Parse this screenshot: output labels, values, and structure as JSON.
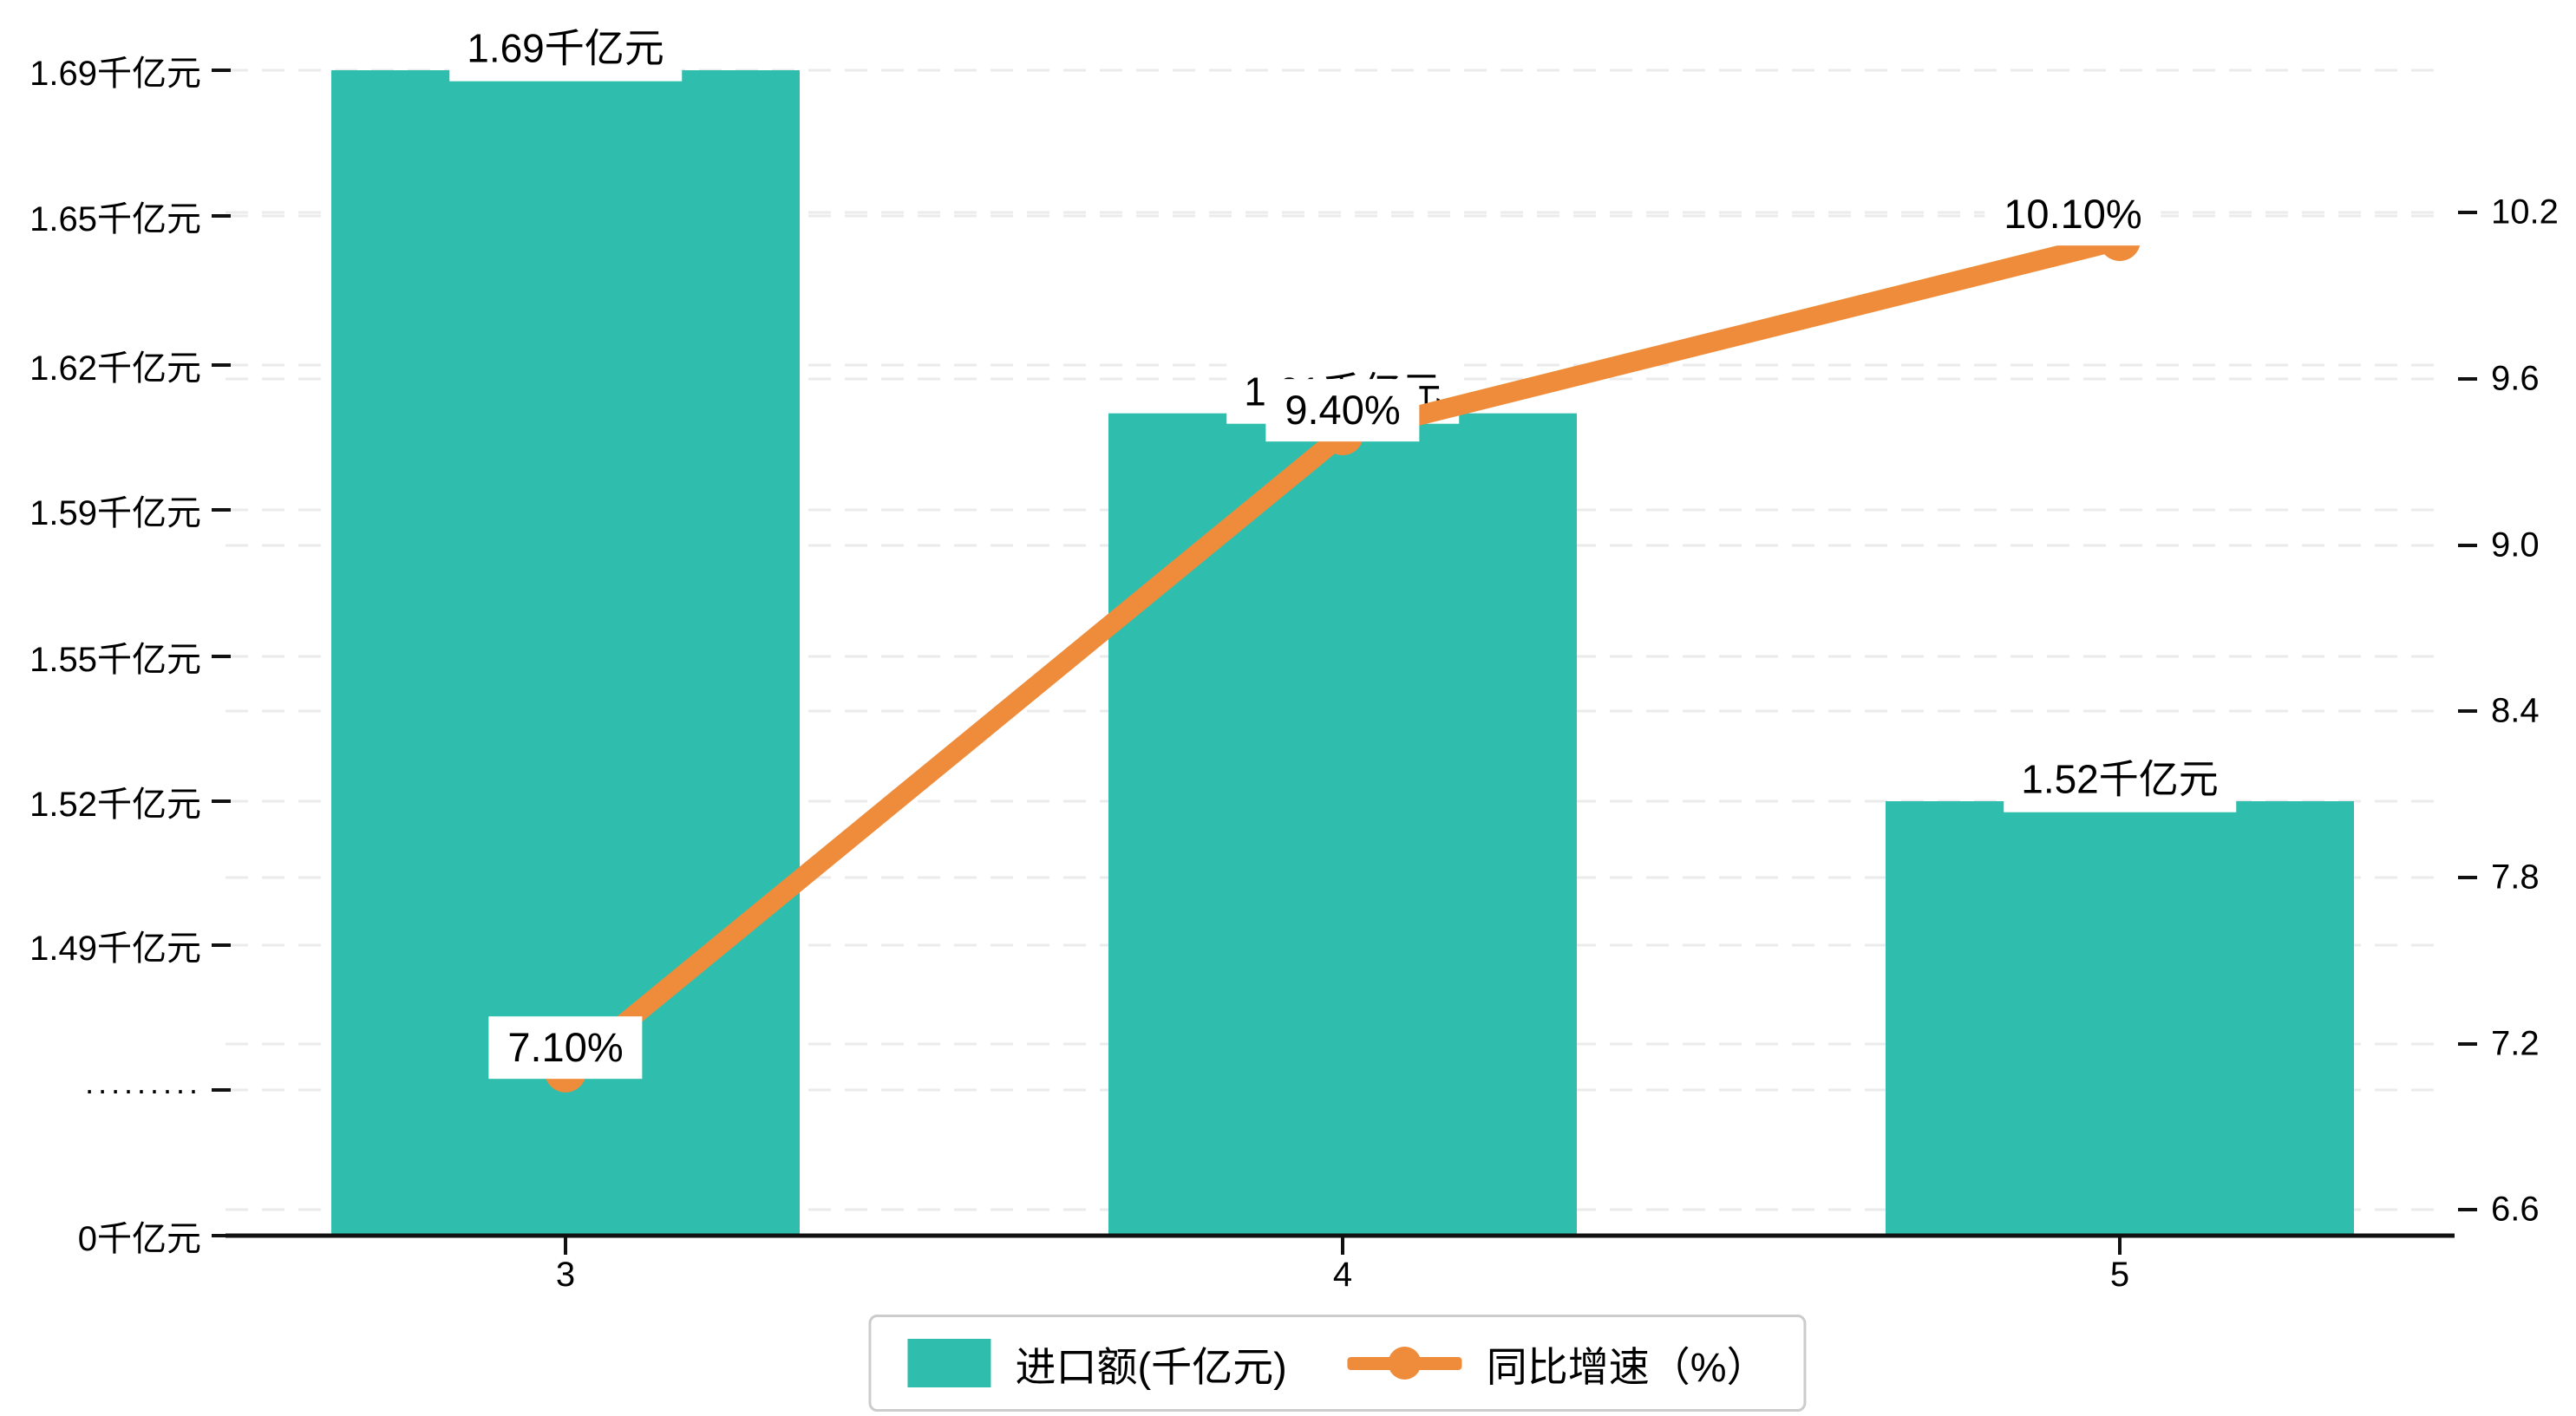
{
  "chart_data": {
    "type": "bar+line combo",
    "categories": [
      "3",
      "4",
      "5"
    ],
    "series": [
      {
        "name": "进口额(千亿元)",
        "type": "bar",
        "axis": "left",
        "color": "#2FBEAD",
        "values": [
          1.69,
          1.61,
          1.52
        ],
        "labels": [
          "1.69千亿元",
          "1.61千亿元",
          "1.52千亿元"
        ]
      },
      {
        "name": "同比增速（%）",
        "type": "line",
        "axis": "right",
        "color": "#EE8C3C",
        "values": [
          7.1,
          9.4,
          10.1
        ],
        "labels": [
          "7.10%",
          "9.40%",
          "10.10%"
        ]
      }
    ],
    "left_axis": {
      "ticks": [
        "1.69千亿元",
        "1.65千亿元",
        "1.62千亿元",
        "1.59千亿元",
        "1.55千亿元",
        "1.52千亿元",
        "1.49千亿元",
        "·········",
        "0千亿元"
      ],
      "tick_values": [
        1.69,
        1.65,
        1.62,
        1.59,
        1.55,
        1.52,
        1.49,
        null,
        0
      ],
      "broken_axis": true
    },
    "right_axis": {
      "ticks": [
        "10.2",
        "9.6",
        "9.0",
        "8.4",
        "7.8",
        "7.2",
        "6.6"
      ],
      "tick_values": [
        10.2,
        9.6,
        9.0,
        8.4,
        7.8,
        7.2,
        6.6
      ],
      "range": [
        6.6,
        10.2
      ]
    },
    "x_axis": {
      "ticks": [
        "3",
        "4",
        "5"
      ]
    },
    "grid": "dashed horizontal",
    "legend_position": "bottom-center",
    "title": ""
  },
  "legend": {
    "items": [
      {
        "label": "进口额(千亿元)",
        "color": "#2FBEAD",
        "marker": "square"
      },
      {
        "label": "同比增速（%）",
        "color": "#EE8C3C",
        "marker": "line-circle"
      }
    ]
  },
  "colors": {
    "bar": "#2FBEAD",
    "line": "#EE8C3C",
    "grid": "#EBEBEB",
    "axis": "#111111",
    "label_background": "#FFFFFF",
    "text": "#000000"
  }
}
